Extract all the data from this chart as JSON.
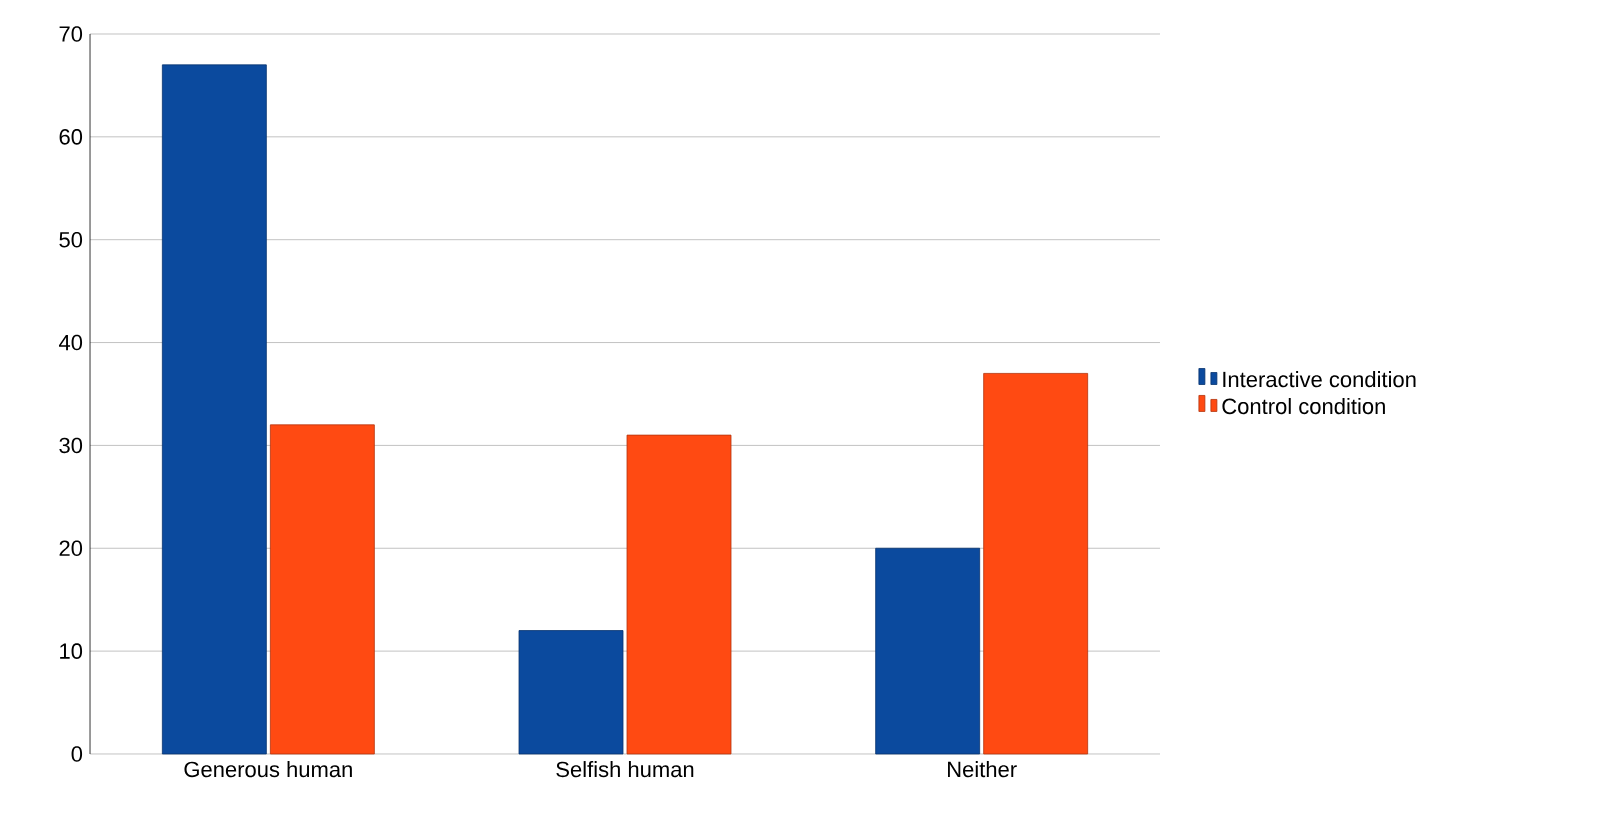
{
  "chart_data": {
    "type": "bar",
    "categories": [
      "Generous human",
      "Selfish human",
      "Neither"
    ],
    "series": [
      {
        "name": "Interactive condition",
        "color": "#0b4a9e",
        "values": [
          67,
          12,
          20
        ]
      },
      {
        "name": "Control condition",
        "color": "#ff4a12",
        "values": [
          32,
          31,
          37
        ]
      }
    ],
    "ylim": [
      0,
      70
    ],
    "yticks": [
      0,
      10,
      20,
      30,
      40,
      50,
      60,
      70
    ],
    "grid": "y",
    "legend": "right"
  }
}
